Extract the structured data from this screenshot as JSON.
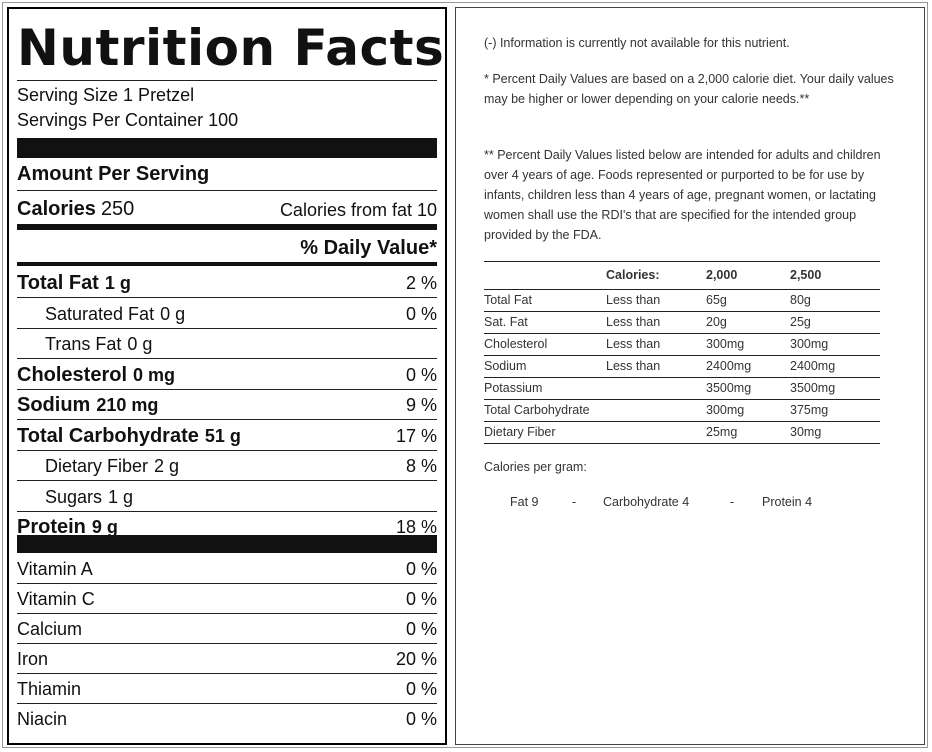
{
  "title": "Nutrition Facts",
  "serving": [
    "Serving Size 1 Pretzel",
    "Servings Per Container 100"
  ],
  "amount_header": "Amount Per Serving",
  "calories": {
    "label": "Calories",
    "value": "250",
    "from_fat": "Calories from fat 10"
  },
  "dv_header": "% Daily Value*",
  "nutrients": [
    {
      "label": "Total Fat",
      "amount": "1 g",
      "dv": "2 %",
      "bold": true
    },
    {
      "label": "Saturated Fat",
      "amount": "0 g",
      "dv": "0 %",
      "bold": false
    },
    {
      "label": "Trans Fat",
      "amount": "0 g",
      "bold": false
    },
    {
      "label": "Cholesterol",
      "amount": "0 mg",
      "dv": "0 %",
      "bold": true
    },
    {
      "label": "Sodium",
      "amount": "210 mg",
      "dv": "9 %",
      "bold": true
    },
    {
      "label": "Total Carbohydrate",
      "amount": "51 g",
      "dv": "17 %",
      "bold": true
    },
    {
      "label": "Dietary Fiber",
      "amount": "2 g",
      "dv": "8 %",
      "bold": false
    },
    {
      "label": "Sugars",
      "amount": "1 g",
      "bold": false
    },
    {
      "label": "Protein",
      "amount": "9 g",
      "dv": "18 %",
      "bold": true
    }
  ],
  "vitamins": [
    {
      "label": "Vitamin A",
      "dv": "0 %"
    },
    {
      "label": "Vitamin C",
      "dv": "0 %"
    },
    {
      "label": "Calcium",
      "dv": "0 %"
    },
    {
      "label": "Iron",
      "dv": "20 %"
    },
    {
      "label": "Thiamin",
      "dv": "0 %"
    },
    {
      "label": "Niacin",
      "dv": "0 %"
    }
  ],
  "notes": [
    "(-) Information is currently not available for this nutrient.",
    "* Percent Daily Values are based on a 2,000 calorie diet. Your daily values may be higher or lower depending on your calorie needs.**",
    "** Percent Daily Values listed below are intended for adults and children over 4 years of age. Foods represented or purported to be for use by infants, children less than 4 years of age, pregnant women, or lactating women shall use the RDI's that are specified for the intended group provided by the FDA."
  ],
  "dv_table": {
    "header": {
      "label": "Calories:",
      "columns": [
        "2,000",
        "2,500"
      ]
    },
    "rows": [
      {
        "name": "Total Fat",
        "qualifier": "Less than",
        "values": [
          "65g",
          "80g"
        ]
      },
      {
        "name": "Sat. Fat",
        "qualifier": "Less than",
        "values": [
          "20g",
          "25g"
        ]
      },
      {
        "name": "Cholesterol",
        "qualifier": "Less than",
        "values": [
          "300mg",
          "300mg"
        ]
      },
      {
        "name": "Sodium",
        "qualifier": "Less than",
        "values": [
          "2400mg",
          "2400mg"
        ]
      },
      {
        "name": "Potassium",
        "values": [
          "3500mg",
          "3500mg"
        ]
      },
      {
        "name": "Total Carbohydrate",
        "values": [
          "300mg",
          "375mg"
        ]
      },
      {
        "name": "Dietary Fiber",
        "values": [
          "25mg",
          "30mg"
        ]
      }
    ]
  },
  "calories_per_gram": {
    "title": "Calories per gram:",
    "items": [
      "Fat 9",
      "Carbohydrate 4",
      "Protein 4"
    ],
    "separator": "-"
  }
}
